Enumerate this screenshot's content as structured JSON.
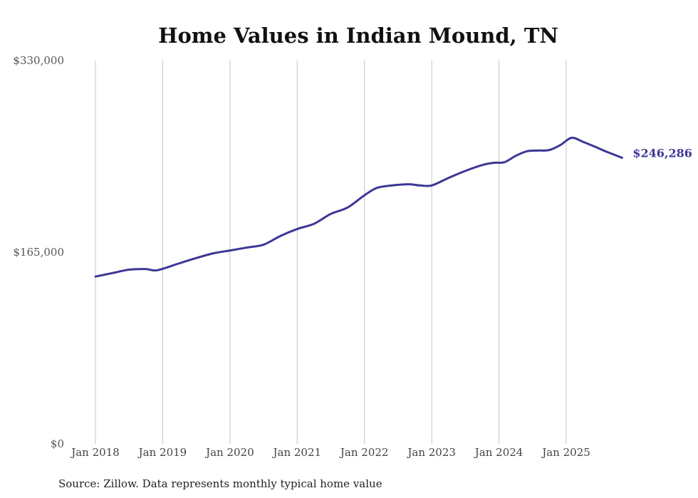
{
  "chart_data": {
    "type": "line",
    "title": "Home Values in Indian Mound, TN",
    "xlabel": "",
    "ylabel": "",
    "ylim": [
      0,
      330000
    ],
    "yticks": [
      {
        "value": 0,
        "label": "$0"
      },
      {
        "value": 165000,
        "label": "$165,000"
      },
      {
        "value": 330000,
        "label": "$330,000"
      }
    ],
    "xticks": [
      {
        "value": 2018.0,
        "label": "Jan 2018"
      },
      {
        "value": 2019.0,
        "label": "Jan 2019"
      },
      {
        "value": 2020.0,
        "label": "Jan 2020"
      },
      {
        "value": 2021.0,
        "label": "Jan 2021"
      },
      {
        "value": 2022.0,
        "label": "Jan 2022"
      },
      {
        "value": 2023.0,
        "label": "Jan 2023"
      },
      {
        "value": 2024.0,
        "label": "Jan 2024"
      },
      {
        "value": 2025.0,
        "label": "Jan 2025"
      }
    ],
    "xlim": [
      2017.6,
      2026.1
    ],
    "grid": "vertical",
    "series": [
      {
        "name": "Typical home value",
        "color": "#3d3796",
        "x": [
          2018.0,
          2018.25,
          2018.5,
          2018.75,
          2018.92,
          2019.25,
          2019.5,
          2019.75,
          2020.0,
          2020.25,
          2020.5,
          2020.75,
          2021.0,
          2021.25,
          2021.5,
          2021.75,
          2022.0,
          2022.17,
          2022.33,
          2022.5,
          2022.67,
          2022.83,
          2023.0,
          2023.25,
          2023.5,
          2023.75,
          2023.92,
          2024.08,
          2024.25,
          2024.42,
          2024.58,
          2024.75,
          2024.92,
          2025.08,
          2025.25,
          2025.42,
          2025.58,
          2025.83
        ],
        "values": [
          144000,
          147000,
          150000,
          150500,
          149500,
          155500,
          160000,
          164000,
          166500,
          169000,
          171500,
          179000,
          185000,
          189500,
          198000,
          203500,
          214000,
          220000,
          222000,
          223000,
          223500,
          222500,
          222500,
          229000,
          235000,
          240000,
          242000,
          242500,
          248000,
          252000,
          252500,
          253000,
          257500,
          263500,
          260000,
          256000,
          252000,
          246286
        ]
      }
    ],
    "end_label": "$246,286",
    "source_text": "Source: Zillow. Data represents monthly typical home value"
  }
}
